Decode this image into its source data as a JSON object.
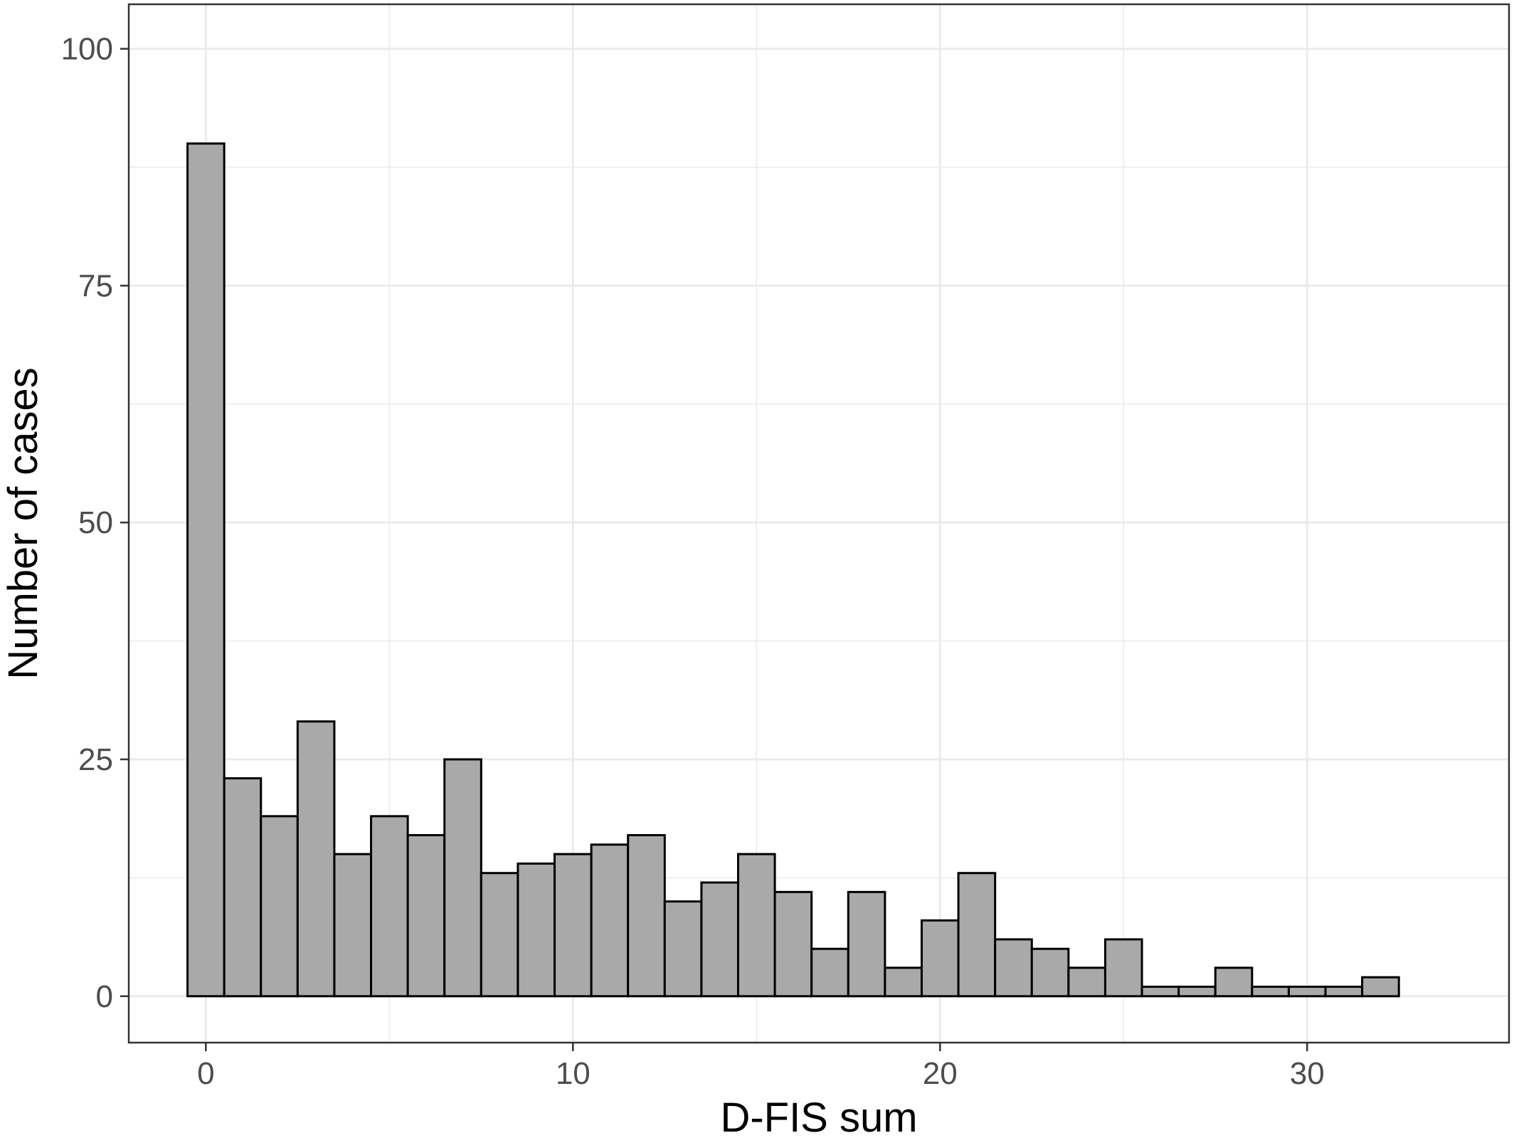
{
  "chart_data": {
    "type": "bar",
    "title": "",
    "xlabel": "D-FIS sum",
    "ylabel": "Number of cases",
    "xlim": [
      -2.1,
      35.5
    ],
    "ylim": [
      -4.9,
      104.7
    ],
    "x_ticks": [
      0,
      10,
      20,
      30
    ],
    "y_ticks": [
      0,
      25,
      50,
      75,
      100
    ],
    "x_minor_ticks": [
      5,
      15,
      25
    ],
    "y_minor_ticks": [
      12.5,
      37.5,
      62.5,
      87.5
    ],
    "bin_width": 1,
    "grid": true,
    "legend": "none",
    "bar_fill": "#a9a9a9",
    "bar_outline": "#000000",
    "x": [
      0,
      1,
      2,
      3,
      4,
      5,
      6,
      7,
      8,
      9,
      10,
      11,
      12,
      13,
      14,
      15,
      16,
      17,
      18,
      19,
      20,
      21,
      22,
      23,
      24,
      25,
      26,
      27,
      28,
      29,
      30,
      31,
      32
    ],
    "values": [
      90,
      23,
      19,
      29,
      15,
      19,
      17,
      25,
      13,
      14,
      15,
      16,
      17,
      10,
      12,
      15,
      11,
      5,
      11,
      3,
      8,
      13,
      6,
      5,
      3,
      6,
      1,
      1,
      3,
      1,
      1,
      1,
      2
    ]
  }
}
